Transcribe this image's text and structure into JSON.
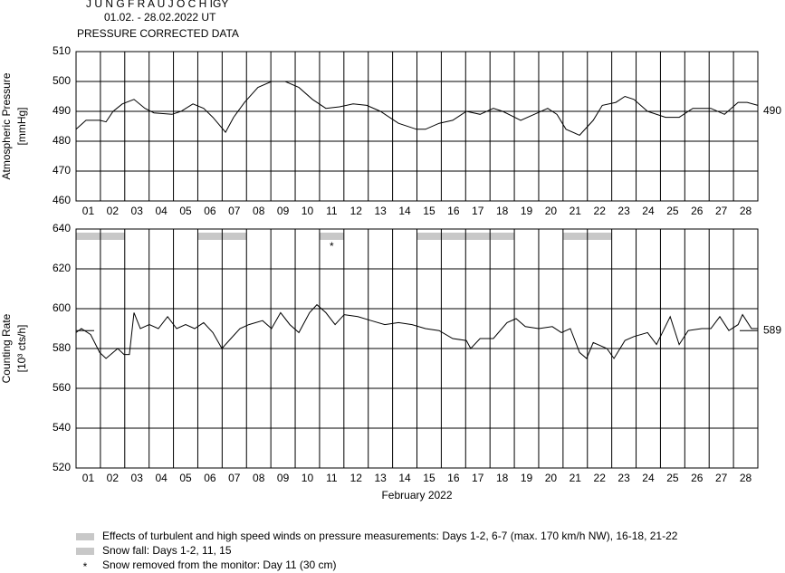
{
  "chart_data": [
    {
      "type": "line",
      "title": "J U N G F R A U J O C H  IGY",
      "subtitle": "01.02. - 28.02.2022  UT",
      "note": "PRESSURE CORRECTED DATA",
      "ylabel": [
        "Atmospheric Pressure",
        "[mmHg]"
      ],
      "days": [
        "01",
        "02",
        "03",
        "04",
        "05",
        "06",
        "07",
        "08",
        "09",
        "10",
        "11",
        "12",
        "13",
        "14",
        "15",
        "16",
        "17",
        "18",
        "19",
        "20",
        "21",
        "22",
        "23",
        "24",
        "25",
        "26",
        "27",
        "28"
      ],
      "xlim": [
        0,
        28
      ],
      "ylim": [
        460,
        510
      ],
      "yticks": [
        460,
        470,
        480,
        490,
        500,
        510
      ],
      "grid": true,
      "color": "#000000",
      "reference": 490,
      "x": [
        0,
        0.41,
        0.97,
        1.23,
        1.52,
        1.9,
        2.38,
        2.83,
        3.2,
        3.94,
        4.31,
        4.8,
        5.24,
        5.62,
        6.14,
        6.47,
        6.92,
        7.47,
        8.03,
        8.59,
        9.15,
        9.71,
        10.26,
        10.82,
        11.38,
        11.94,
        12.5,
        13.24,
        13.98,
        14.35,
        14.91,
        15.47,
        16.03,
        16.59,
        17.14,
        17.52,
        18.26,
        18.82,
        19.37,
        19.75,
        20.12,
        20.68,
        21.24,
        21.61,
        22.17,
        22.54,
        22.91,
        23.47,
        24.21,
        24.77,
        25.33,
        26.07,
        26.63,
        27.19,
        27.56,
        28
      ],
      "values": [
        484,
        487,
        487,
        486.5,
        490,
        492.5,
        494,
        491,
        489.5,
        489,
        490,
        492.5,
        491,
        488,
        483,
        488,
        493,
        498,
        500,
        500,
        498,
        494,
        491,
        491.5,
        492.5,
        492,
        490,
        486,
        484,
        484,
        486,
        487,
        490,
        489,
        491,
        490,
        487,
        489,
        491,
        489,
        484,
        482,
        487,
        492,
        493,
        495,
        494,
        490,
        488,
        488,
        491,
        491,
        489,
        493,
        493,
        492
      ]
    },
    {
      "type": "line",
      "ylabel": [
        "Counting Rate",
        "[10³ cts/h]"
      ],
      "xlabel": "February 2022",
      "days": [
        "01",
        "02",
        "03",
        "04",
        "05",
        "06",
        "07",
        "08",
        "09",
        "10",
        "11",
        "12",
        "13",
        "14",
        "15",
        "16",
        "17",
        "18",
        "19",
        "20",
        "21",
        "22",
        "23",
        "24",
        "25",
        "26",
        "27",
        "28"
      ],
      "xlim": [
        0,
        28
      ],
      "ylim": [
        520,
        640
      ],
      "yticks": [
        520,
        540,
        560,
        580,
        600,
        620,
        640
      ],
      "grid": true,
      "color": "#000000",
      "reference": 589,
      "bands": [
        [
          0,
          2
        ],
        [
          5,
          7
        ],
        [
          10,
          11
        ],
        [
          14,
          18
        ],
        [
          20,
          22
        ]
      ],
      "band_color": "#c8c8c8",
      "marker": {
        "x": 10.5,
        "label": "*"
      },
      "x": [
        0,
        0.22,
        0.6,
        0.97,
        1.23,
        1.52,
        1.71,
        1.97,
        2.19,
        2.38,
        2.64,
        3.01,
        3.38,
        3.76,
        4.13,
        4.5,
        4.87,
        5.24,
        5.62,
        5.99,
        6.36,
        6.73,
        7.1,
        7.66,
        8.03,
        8.4,
        8.78,
        9.15,
        9.59,
        9.89,
        10.26,
        10.64,
        11.01,
        11.57,
        12.12,
        12.68,
        13.24,
        13.8,
        14.35,
        14.91,
        15.47,
        16.03,
        16.21,
        16.59,
        17.14,
        17.7,
        18.07,
        18.45,
        19,
        19.56,
        19.93,
        20.3,
        20.68,
        20.97,
        21.24,
        21.8,
        22.09,
        22.54,
        22.91,
        23.47,
        23.84,
        24.4,
        24.77,
        25.14,
        25.7,
        26.07,
        26.44,
        26.81,
        27.19,
        27.37,
        27.74,
        28
      ],
      "values": [
        588,
        590,
        587,
        578,
        575,
        578,
        580,
        577,
        577,
        598,
        590,
        592,
        590,
        596,
        590,
        592,
        590,
        593,
        588,
        580,
        585,
        590,
        592,
        594,
        590,
        598,
        592,
        588,
        598,
        602,
        598,
        592,
        597,
        596,
        594,
        592,
        593,
        592,
        590,
        589,
        585,
        584,
        580,
        585,
        585,
        593,
        595,
        591,
        590,
        591,
        588,
        590,
        578,
        575,
        583,
        580,
        575,
        584,
        586,
        588,
        582,
        596,
        582,
        589,
        590,
        590,
        596,
        589,
        592,
        597,
        590,
        590
      ]
    }
  ],
  "legend": [
    {
      "symbol": "bar",
      "color": "#c8c8c8",
      "text": "Effects of turbulent and high speed winds on pressure measurements: Days 1-2, 6-7 (max. 170 km/h NW), 16-18, 21-22"
    },
    {
      "symbol": "bar",
      "color": "#c8c8c8",
      "text": "Snow fall: Days 1-2, 11, 15"
    },
    {
      "symbol": "*",
      "text": "Snow removed from the monitor: Day 11 (30 cm)"
    }
  ]
}
